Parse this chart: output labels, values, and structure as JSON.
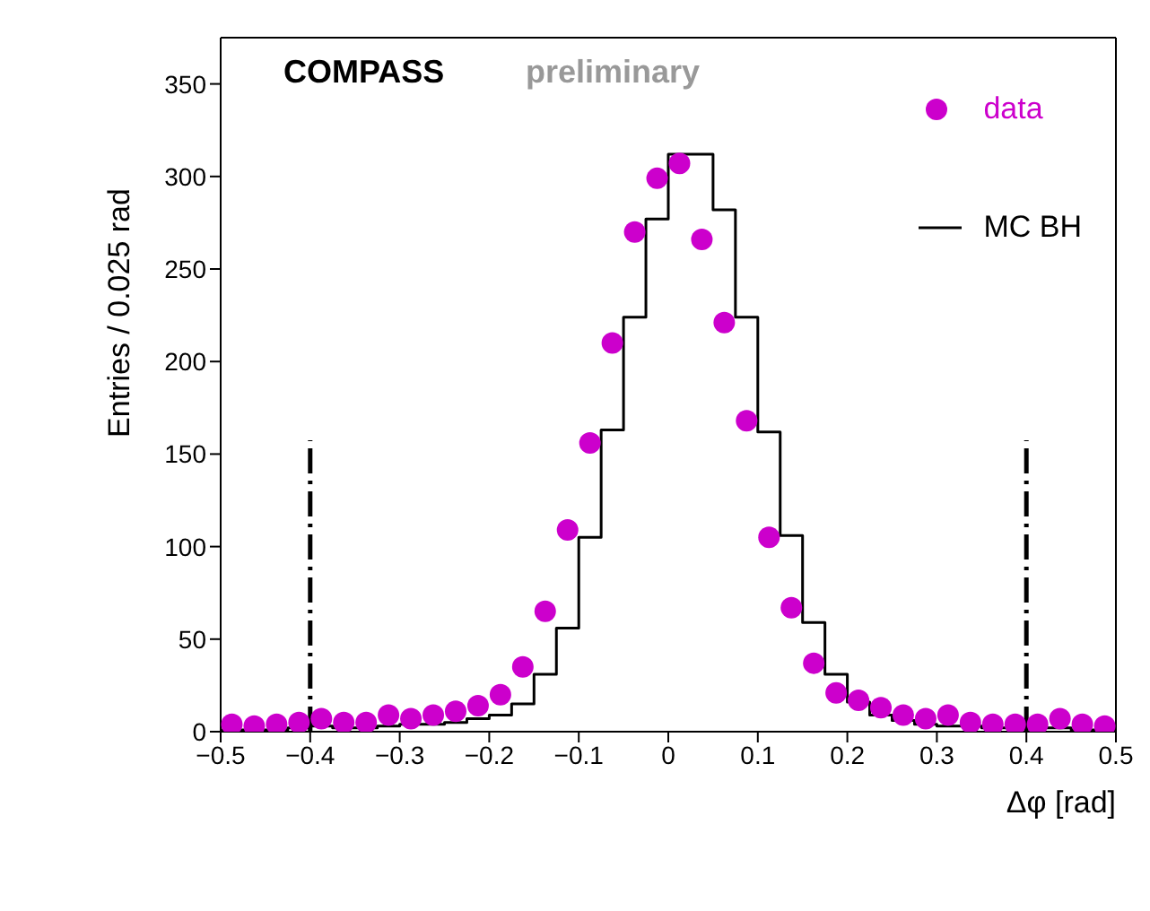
{
  "chart_data": {
    "type": "histogram",
    "xlabel": "Δφ [rad]",
    "ylabel": "Entries / 0.025 rad",
    "annotations": [
      "COMPASS",
      "preliminary"
    ],
    "bins": [
      -0.5,
      -0.475,
      -0.45,
      -0.425,
      -0.4,
      -0.375,
      -0.35,
      -0.325,
      -0.3,
      -0.275,
      -0.25,
      -0.225,
      -0.2,
      -0.175,
      -0.15,
      -0.125,
      -0.1,
      -0.075,
      -0.05,
      -0.025,
      0,
      0.025,
      0.05,
      0.075,
      0.1,
      0.125,
      0.15,
      0.175,
      0.2,
      0.225,
      0.25,
      0.275,
      0.3,
      0.325,
      0.35,
      0.375,
      0.4,
      0.425,
      0.45,
      0.475,
      0.5
    ],
    "series": [
      {
        "name": "MC BH",
        "color": "#000000",
        "values": [
          1,
          1,
          1,
          2,
          3,
          2,
          2,
          3,
          4,
          4,
          5,
          7,
          9,
          15,
          31,
          56,
          105,
          163,
          224,
          277,
          312,
          312,
          282,
          224,
          162,
          106,
          59,
          31,
          16,
          9,
          6,
          4,
          3,
          3,
          2,
          2,
          2,
          2,
          1,
          1
        ]
      },
      {
        "name": "data",
        "type": "scatter",
        "color": "#cc00cc",
        "x": [
          -0.4875,
          -0.4625,
          -0.4375,
          -0.4125,
          -0.3875,
          -0.3625,
          -0.3375,
          -0.3125,
          -0.2875,
          -0.2625,
          -0.2375,
          -0.2125,
          -0.1875,
          -0.1625,
          -0.1375,
          -0.1125,
          -0.0875,
          -0.0625,
          -0.0375,
          -0.0125,
          0.0125,
          0.0375,
          0.0625,
          0.0875,
          0.1125,
          0.1375,
          0.1625,
          0.1875,
          0.2125,
          0.2375,
          0.2625,
          0.2875,
          0.3125,
          0.3375,
          0.3625,
          0.3875,
          0.4125,
          0.4375,
          0.4625,
          0.4875
        ],
        "values": [
          4,
          3,
          4,
          5,
          7,
          5,
          5,
          9,
          7,
          9,
          11,
          14,
          20,
          35,
          65,
          109,
          156,
          210,
          270,
          299,
          307,
          266,
          221,
          168,
          105,
          67,
          37,
          21,
          17,
          13,
          9,
          7,
          9,
          5,
          4,
          4,
          4,
          7,
          4,
          3
        ]
      }
    ],
    "xlim": [
      -0.5,
      0.5
    ],
    "xticks": [
      -0.5,
      -0.4,
      -0.3,
      -0.2,
      -0.1,
      0,
      0.1,
      0.2,
      0.3,
      0.4,
      0.5
    ],
    "ylim": [
      0,
      375
    ],
    "yticks": [
      0,
      50,
      100,
      150,
      200,
      250,
      300,
      350
    ],
    "ref_lines": [
      {
        "axis": "x",
        "value": -0.4,
        "color": "#000000",
        "line_style": "dashed"
      },
      {
        "axis": "x",
        "value": 0.4,
        "color": "#000000",
        "line_style": "dashed"
      }
    ],
    "grid": false,
    "legend": "top right",
    "marker": "circle"
  }
}
